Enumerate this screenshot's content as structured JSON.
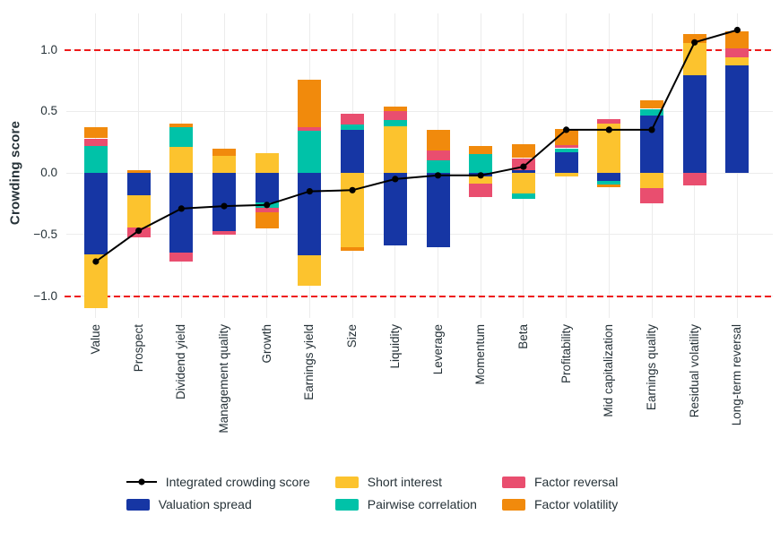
{
  "chart_data": {
    "type": "bar",
    "subtype": "stacked-bar-with-line-overlay",
    "ylabel": "Crowding score",
    "categories": [
      "Value",
      "Prospect",
      "Dividend yield",
      "Management quality",
      "Growth",
      "Earnings yield",
      "Size",
      "Liquidity",
      "Leverage",
      "Momentum",
      "Beta",
      "Profitability",
      "Mid capitalization",
      "Earnings quality",
      "Residual volatility",
      "Long-term reversal"
    ],
    "series": [
      {
        "name": "Valuation spread",
        "color": "#1636A4",
        "values": [
          -0.66,
          -0.18,
          -0.65,
          -0.47,
          -0.24,
          -0.67,
          0.35,
          -0.59,
          -0.6,
          -0.03,
          0.02,
          0.17,
          -0.065,
          0.465,
          0.79,
          0.875
        ]
      },
      {
        "name": "Short interest",
        "color": "#FCC32E",
        "values": [
          -0.44,
          -0.26,
          0.21,
          0.14,
          0.16,
          -0.25,
          -0.6,
          0.38,
          0,
          -0.06,
          -0.17,
          -0.03,
          0.4,
          -0.12,
          0.265,
          0.065
        ]
      },
      {
        "name": "Pairwise correlation",
        "color": "#00C2A8",
        "values": [
          0.22,
          0,
          0.16,
          0,
          -0.04,
          0.34,
          0.04,
          0.05,
          0.1,
          0.15,
          -0.04,
          0.03,
          -0.03,
          0.055,
          0,
          0
        ]
      },
      {
        "name": "Factor reversal",
        "color": "#E94E6F",
        "values": [
          0.06,
          -0.08,
          -0.07,
          -0.03,
          -0.04,
          0.03,
          0.09,
          0.07,
          0.08,
          -0.11,
          0.1,
          0.025,
          0.035,
          -0.13,
          -0.1,
          0.07
        ]
      },
      {
        "name": "Factor volatility",
        "color": "#F18A0C",
        "values": [
          0.09,
          0.02,
          0.03,
          0.06,
          -0.13,
          0.39,
          -0.03,
          0.04,
          0.17,
          0.07,
          0.11,
          0.135,
          -0.025,
          0.07,
          0.075,
          0.14
        ]
      }
    ],
    "line_series": {
      "name": "Integrated crowding score",
      "color": "#000000",
      "values": [
        -0.72,
        -0.47,
        -0.29,
        -0.27,
        -0.26,
        -0.15,
        -0.14,
        -0.05,
        -0.02,
        -0.02,
        0.05,
        0.35,
        0.35,
        0.35,
        1.06,
        1.16
      ]
    },
    "yticks": [
      {
        "value": 1.0,
        "label": "1.0"
      },
      {
        "value": 0.5,
        "label": "0.5"
      },
      {
        "value": 0.0,
        "label": "0.0"
      },
      {
        "value": -0.5,
        "label": "−0.5"
      },
      {
        "value": -1.0,
        "label": "−1.0"
      }
    ],
    "ylim": [
      -1.22,
      1.29
    ],
    "grid": true,
    "reference_lines": [
      1.0,
      -1.0
    ],
    "reference_color": "#EE1A1A",
    "legend_position": "bottom",
    "legend": [
      {
        "label": "Integrated crowding score",
        "swatch": "line",
        "color": "#000000"
      },
      {
        "label": "Valuation spread",
        "swatch": "rect",
        "color": "#1636A4"
      },
      {
        "label": "Short interest",
        "swatch": "rect",
        "color": "#FCC32E"
      },
      {
        "label": "Pairwise correlation",
        "swatch": "rect",
        "color": "#00C2A8"
      },
      {
        "label": "Factor reversal",
        "swatch": "rect",
        "color": "#E94E6F"
      },
      {
        "label": "Factor volatility",
        "swatch": "rect",
        "color": "#F18A0C"
      }
    ]
  }
}
